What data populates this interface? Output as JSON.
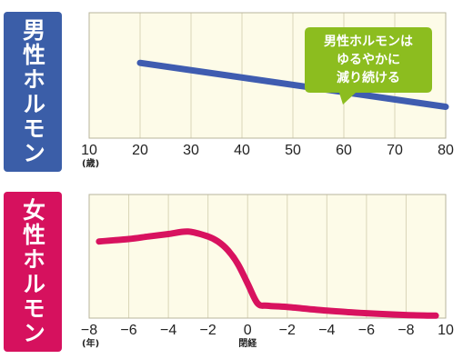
{
  "colors": {
    "male_accent": "#3b5ea8",
    "male_line": "#3f5cb0",
    "female_accent": "#d6115e",
    "female_line": "#d8125f",
    "panel_bg": "#fdfbe8",
    "grid": "#d9d5b8",
    "callout": "#8cbd1f"
  },
  "chart_data": [
    {
      "type": "line",
      "side_label": "男性ホルモン",
      "x_ticks": [
        10,
        20,
        30,
        40,
        50,
        60,
        70,
        80
      ],
      "x_unit": "(歳)",
      "xlim": [
        10,
        80
      ],
      "ylim": [
        0,
        100
      ],
      "grid": true,
      "annotation": [
        "男性ホルモンは",
        "ゆるやかに",
        "減り続ける"
      ],
      "series": [
        {
          "x": [
            20,
            80
          ],
          "y": [
            60,
            25
          ]
        }
      ]
    },
    {
      "type": "line",
      "side_label": "女性ホルモン",
      "x_ticks": [
        "−8",
        "−6",
        "−4",
        "−2",
        "0",
        "−2",
        "−4",
        "−6",
        "−8",
        "10"
      ],
      "x_unit": "(年)",
      "x_center_label": "閉経",
      "xlim": [
        -8,
        10
      ],
      "ylim": [
        0,
        100
      ],
      "grid": true,
      "series": [
        {
          "x": [
            -7.5,
            -6,
            -5,
            -4,
            -3,
            -2,
            -1.5,
            -1,
            -0.5,
            0,
            0.5,
            1,
            2,
            4,
            6,
            8,
            9.5
          ],
          "y": [
            62,
            64,
            66,
            68,
            70,
            66,
            62,
            55,
            44,
            28,
            12,
            10,
            9,
            6,
            4,
            2.5,
            2
          ]
        }
      ]
    }
  ]
}
